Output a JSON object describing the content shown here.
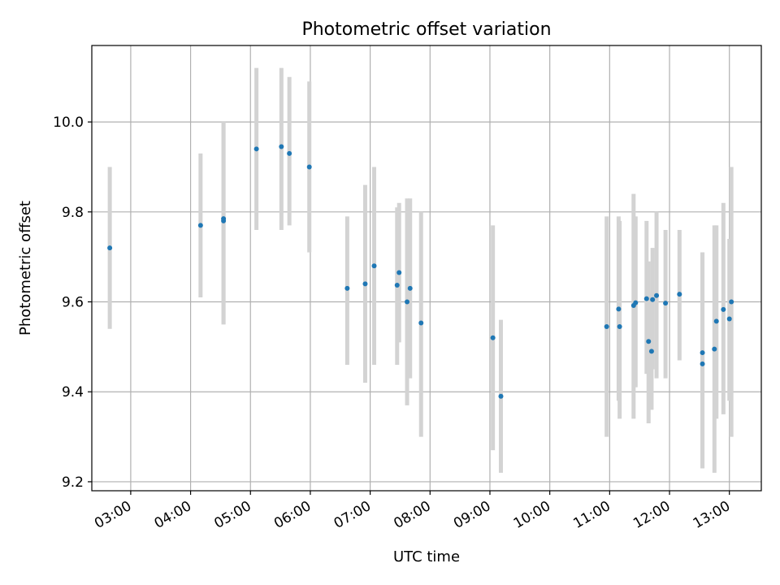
{
  "chart_data": {
    "type": "scatter",
    "title": "Photometric offset variation",
    "xlabel": "UTC time",
    "ylabel": "Photometric offset",
    "grid": true,
    "legend": "none",
    "x_format": "HH:MM",
    "xlim": [
      "02:21",
      "13:32"
    ],
    "ylim": [
      9.18,
      10.17
    ],
    "xticks": [
      "03:00",
      "04:00",
      "05:00",
      "06:00",
      "07:00",
      "08:00",
      "09:00",
      "10:00",
      "11:00",
      "12:00",
      "13:00"
    ],
    "yticks": [
      9.2,
      9.4,
      9.6,
      9.8,
      10.0
    ],
    "ytick_labels": [
      "9.2",
      "9.4",
      "9.6",
      "9.8",
      "10.0"
    ],
    "colors": {
      "point": "#1f77b4",
      "errorbar": "#d3d3d3",
      "grid": "#b0b0b0"
    },
    "series": [
      {
        "points": [
          {
            "x": "02:39",
            "y": 9.72,
            "ylow": 9.54,
            "yhigh": 9.9
          },
          {
            "x": "04:10",
            "y": 9.77,
            "ylow": 9.61,
            "yhigh": 9.93
          },
          {
            "x": "04:33",
            "y": 9.78,
            "ylow": 9.55,
            "yhigh": 10.0
          },
          {
            "x": "04:33",
            "y": 9.785,
            "ylow": 9.55,
            "yhigh": 10.0
          },
          {
            "x": "05:06",
            "y": 9.94,
            "ylow": 9.76,
            "yhigh": 10.12
          },
          {
            "x": "05:31",
            "y": 9.945,
            "ylow": 9.76,
            "yhigh": 10.12
          },
          {
            "x": "05:39",
            "y": 9.93,
            "ylow": 9.77,
            "yhigh": 10.1
          },
          {
            "x": "05:59",
            "y": 9.9,
            "ylow": 9.71,
            "yhigh": 10.09
          },
          {
            "x": "06:37",
            "y": 9.63,
            "ylow": 9.46,
            "yhigh": 9.79
          },
          {
            "x": "06:55",
            "y": 9.64,
            "ylow": 9.42,
            "yhigh": 9.86
          },
          {
            "x": "07:04",
            "y": 9.68,
            "ylow": 9.46,
            "yhigh": 9.9
          },
          {
            "x": "07:27",
            "y": 9.637,
            "ylow": 9.46,
            "yhigh": 9.81
          },
          {
            "x": "07:29",
            "y": 9.665,
            "ylow": 9.51,
            "yhigh": 9.82
          },
          {
            "x": "07:37",
            "y": 9.6,
            "ylow": 9.37,
            "yhigh": 9.83
          },
          {
            "x": "07:40",
            "y": 9.63,
            "ylow": 9.43,
            "yhigh": 9.83
          },
          {
            "x": "07:51",
            "y": 9.553,
            "ylow": 9.3,
            "yhigh": 9.8
          },
          {
            "x": "09:03",
            "y": 9.52,
            "ylow": 9.27,
            "yhigh": 9.77
          },
          {
            "x": "09:11",
            "y": 9.39,
            "ylow": 9.22,
            "yhigh": 9.56
          },
          {
            "x": "10:57",
            "y": 9.545,
            "ylow": 9.3,
            "yhigh": 9.79
          },
          {
            "x": "11:09",
            "y": 9.584,
            "ylow": 9.38,
            "yhigh": 9.79
          },
          {
            "x": "11:10",
            "y": 9.545,
            "ylow": 9.34,
            "yhigh": 9.78
          },
          {
            "x": "11:24",
            "y": 9.592,
            "ylow": 9.34,
            "yhigh": 9.84
          },
          {
            "x": "11:26",
            "y": 9.598,
            "ylow": 9.41,
            "yhigh": 9.79
          },
          {
            "x": "11:37",
            "y": 9.607,
            "ylow": 9.44,
            "yhigh": 9.78
          },
          {
            "x": "11:39",
            "y": 9.512,
            "ylow": 9.33,
            "yhigh": 9.69
          },
          {
            "x": "11:42",
            "y": 9.49,
            "ylow": 9.36,
            "yhigh": 9.62
          },
          {
            "x": "11:43",
            "y": 9.605,
            "ylow": 9.45,
            "yhigh": 9.72
          },
          {
            "x": "11:47",
            "y": 9.614,
            "ylow": 9.43,
            "yhigh": 9.8
          },
          {
            "x": "11:56",
            "y": 9.597,
            "ylow": 9.43,
            "yhigh": 9.76
          },
          {
            "x": "12:10",
            "y": 9.617,
            "ylow": 9.47,
            "yhigh": 9.76
          },
          {
            "x": "12:33",
            "y": 9.487,
            "ylow": 9.23,
            "yhigh": 9.71
          },
          {
            "x": "12:33",
            "y": 9.462,
            "ylow": 9.23,
            "yhigh": 9.71
          },
          {
            "x": "12:45",
            "y": 9.495,
            "ylow": 9.22,
            "yhigh": 9.77
          },
          {
            "x": "12:47",
            "y": 9.557,
            "ylow": 9.34,
            "yhigh": 9.77
          },
          {
            "x": "12:54",
            "y": 9.583,
            "ylow": 9.35,
            "yhigh": 9.82
          },
          {
            "x": "13:00",
            "y": 9.562,
            "ylow": 9.38,
            "yhigh": 9.74
          },
          {
            "x": "13:02",
            "y": 9.6,
            "ylow": 9.3,
            "yhigh": 9.9
          }
        ]
      }
    ]
  }
}
